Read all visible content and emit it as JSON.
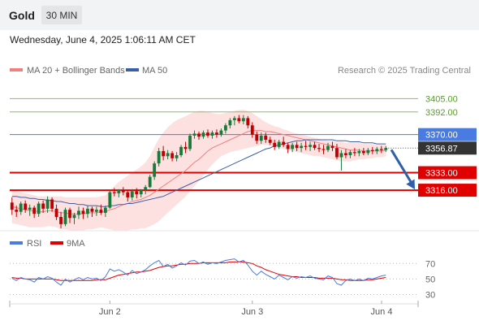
{
  "header": {
    "asset": "Gold",
    "timeframe": "30 MIN",
    "timestamp": "Wednesday, June 4, 2025 1:06:11 AM CET"
  },
  "legend": {
    "ma20_bb": "MA 20 + Bollinger Bands",
    "ma50": "MA 50",
    "credit": "Research © 2025 Trading Central",
    "rsi": "RSI",
    "rsi_ma": "9MA"
  },
  "colors": {
    "up": "#1a7a3a",
    "down": "#c00000",
    "ma20": "#f08080",
    "ma50": "#3a5fa8",
    "band_fill": "#fde0e0",
    "resistance": "#88c060",
    "pivot": "#4a7be0",
    "support": "#e00000",
    "arrow": "#2e5fa8",
    "rsi_line": "#4a7be0",
    "rsi_ma_line": "#e00000"
  },
  "chart_data": [
    {
      "type": "candlestick",
      "title": "Gold",
      "ylim": [
        3275,
        3425
      ],
      "x_ticks": [
        "Jun 2",
        "Jun 3",
        "Jun 4"
      ],
      "levels": [
        {
          "value": 3405.0,
          "label": "3405.00",
          "kind": "resistance"
        },
        {
          "value": 3392.0,
          "label": "3392.00",
          "kind": "resistance"
        },
        {
          "value": 3370.0,
          "label": "3370.00",
          "kind": "pivot"
        },
        {
          "value": 3333.0,
          "label": "3333.00",
          "kind": "support"
        },
        {
          "value": 3316.0,
          "label": "3316.00",
          "kind": "support"
        }
      ],
      "last_price": {
        "value": 3356.87,
        "label": "3356.87"
      },
      "candles": [
        [
          3304,
          3309,
          3292,
          3297
        ],
        [
          3297,
          3301,
          3290,
          3295
        ],
        [
          3295,
          3305,
          3292,
          3303
        ],
        [
          3303,
          3306,
          3294,
          3297
        ],
        [
          3297,
          3302,
          3291,
          3299
        ],
        [
          3299,
          3301,
          3289,
          3293
        ],
        [
          3293,
          3305,
          3290,
          3303
        ],
        [
          3303,
          3306,
          3294,
          3298
        ],
        [
          3298,
          3310,
          3294,
          3307
        ],
        [
          3307,
          3309,
          3295,
          3298
        ],
        [
          3298,
          3302,
          3287,
          3290
        ],
        [
          3290,
          3295,
          3279,
          3283
        ],
        [
          3283,
          3299,
          3281,
          3297
        ],
        [
          3297,
          3299,
          3284,
          3289
        ],
        [
          3289,
          3294,
          3283,
          3292
        ],
        [
          3292,
          3300,
          3288,
          3296
        ],
        [
          3296,
          3299,
          3288,
          3293
        ],
        [
          3293,
          3301,
          3289,
          3298
        ],
        [
          3298,
          3300,
          3290,
          3295
        ],
        [
          3295,
          3300,
          3291,
          3297
        ],
        [
          3297,
          3302,
          3292,
          3294
        ],
        [
          3294,
          3301,
          3290,
          3299
        ],
        [
          3299,
          3316,
          3298,
          3314
        ],
        [
          3314,
          3318,
          3310,
          3313
        ],
        [
          3313,
          3317,
          3309,
          3316
        ],
        [
          3316,
          3319,
          3311,
          3314
        ],
        [
          3314,
          3316,
          3305,
          3309
        ],
        [
          3309,
          3317,
          3306,
          3315
        ],
        [
          3315,
          3318,
          3308,
          3312
        ],
        [
          3312,
          3317,
          3309,
          3316
        ],
        [
          3316,
          3321,
          3312,
          3319
        ],
        [
          3319,
          3331,
          3318,
          3329
        ],
        [
          3329,
          3344,
          3326,
          3342
        ],
        [
          3342,
          3357,
          3339,
          3354
        ],
        [
          3354,
          3359,
          3345,
          3349
        ],
        [
          3349,
          3355,
          3346,
          3352
        ],
        [
          3352,
          3354,
          3344,
          3347
        ],
        [
          3347,
          3353,
          3344,
          3350
        ],
        [
          3350,
          3360,
          3348,
          3358
        ],
        [
          3358,
          3363,
          3352,
          3356
        ],
        [
          3356,
          3371,
          3354,
          3369
        ],
        [
          3369,
          3374,
          3366,
          3371
        ],
        [
          3371,
          3373,
          3365,
          3368
        ],
        [
          3368,
          3374,
          3366,
          3372
        ],
        [
          3372,
          3375,
          3367,
          3369
        ],
        [
          3369,
          3374,
          3366,
          3372
        ],
        [
          3372,
          3375,
          3367,
          3370
        ],
        [
          3370,
          3376,
          3368,
          3374
        ],
        [
          3374,
          3381,
          3371,
          3379
        ],
        [
          3379,
          3386,
          3376,
          3384
        ],
        [
          3384,
          3388,
          3379,
          3386
        ],
        [
          3386,
          3389,
          3381,
          3383
        ],
        [
          3383,
          3389,
          3380,
          3386
        ],
        [
          3386,
          3388,
          3376,
          3379
        ],
        [
          3379,
          3382,
          3367,
          3370
        ],
        [
          3370,
          3373,
          3361,
          3364
        ],
        [
          3364,
          3372,
          3361,
          3369
        ],
        [
          3369,
          3372,
          3362,
          3365
        ],
        [
          3365,
          3368,
          3360,
          3362
        ],
        [
          3362,
          3365,
          3355,
          3358
        ],
        [
          3358,
          3365,
          3356,
          3363
        ],
        [
          3363,
          3368,
          3358,
          3360
        ],
        [
          3360,
          3362,
          3352,
          3356
        ],
        [
          3356,
          3362,
          3353,
          3360
        ],
        [
          3360,
          3363,
          3354,
          3357
        ],
        [
          3357,
          3362,
          3353,
          3359
        ],
        [
          3359,
          3364,
          3355,
          3358
        ],
        [
          3358,
          3363,
          3354,
          3360
        ],
        [
          3360,
          3363,
          3355,
          3357
        ],
        [
          3357,
          3361,
          3353,
          3356
        ],
        [
          3356,
          3360,
          3351,
          3355
        ],
        [
          3355,
          3362,
          3353,
          3359
        ],
        [
          3359,
          3363,
          3354,
          3357
        ],
        [
          3357,
          3361,
          3346,
          3348
        ],
        [
          3348,
          3355,
          3335,
          3352
        ],
        [
          3352,
          3356,
          3347,
          3350
        ],
        [
          3350,
          3355,
          3347,
          3353
        ],
        [
          3353,
          3357,
          3349,
          3352
        ],
        [
          3352,
          3356,
          3349,
          3354
        ],
        [
          3354,
          3357,
          3350,
          3352
        ],
        [
          3352,
          3357,
          3350,
          3355
        ],
        [
          3355,
          3358,
          3351,
          3354
        ],
        [
          3354,
          3358,
          3351,
          3356
        ],
        [
          3356,
          3359,
          3352,
          3355
        ],
        [
          3355,
          3359,
          3353,
          3357
        ]
      ],
      "ma20": [
        3300,
        3299,
        3298,
        3297,
        3296,
        3296,
        3295,
        3295,
        3296,
        3296,
        3295,
        3294,
        3294,
        3293,
        3293,
        3293,
        3293,
        3294,
        3294,
        3294,
        3295,
        3295,
        3297,
        3298,
        3300,
        3302,
        3303,
        3305,
        3306,
        3307,
        3309,
        3311,
        3314,
        3317,
        3320,
        3323,
        3326,
        3329,
        3332,
        3335,
        3339,
        3343,
        3346,
        3350,
        3354,
        3357,
        3359,
        3361,
        3363,
        3365,
        3367,
        3369,
        3371,
        3373,
        3374,
        3374,
        3374,
        3373,
        3373,
        3372,
        3371,
        3370,
        3369,
        3368,
        3367,
        3366,
        3365,
        3364,
        3363,
        3362,
        3361,
        3360,
        3359,
        3358,
        3357,
        3356,
        3355,
        3355,
        3355,
        3354,
        3354,
        3354,
        3354,
        3354,
        3355
      ],
      "bb_upper": [
        3316,
        3315,
        3314,
        3313,
        3312,
        3311,
        3310,
        3310,
        3310,
        3310,
        3310,
        3310,
        3309,
        3309,
        3309,
        3309,
        3309,
        3309,
        3309,
        3309,
        3310,
        3311,
        3316,
        3320,
        3324,
        3327,
        3330,
        3333,
        3336,
        3339,
        3343,
        3349,
        3358,
        3366,
        3372,
        3377,
        3381,
        3384,
        3386,
        3388,
        3390,
        3392,
        3393,
        3393,
        3392,
        3391,
        3390,
        3390,
        3391,
        3392,
        3393,
        3394,
        3394,
        3393,
        3391,
        3388,
        3385,
        3382,
        3380,
        3378,
        3377,
        3375,
        3374,
        3372,
        3371,
        3370,
        3369,
        3368,
        3367,
        3366,
        3365,
        3364,
        3364,
        3363,
        3363,
        3362,
        3362,
        3362,
        3362,
        3361,
        3361,
        3361,
        3360,
        3360,
        3360
      ],
      "bb_lower": [
        3284,
        3283,
        3282,
        3281,
        3280,
        3280,
        3280,
        3280,
        3281,
        3281,
        3280,
        3278,
        3278,
        3277,
        3277,
        3277,
        3277,
        3278,
        3278,
        3279,
        3280,
        3279,
        3278,
        3277,
        3276,
        3277,
        3277,
        3278,
        3278,
        3279,
        3279,
        3281,
        3283,
        3286,
        3290,
        3294,
        3298,
        3302,
        3306,
        3310,
        3315,
        3320,
        3325,
        3330,
        3336,
        3341,
        3345,
        3349,
        3351,
        3353,
        3354,
        3355,
        3356,
        3357,
        3358,
        3359,
        3360,
        3360,
        3359,
        3358,
        3357,
        3356,
        3355,
        3354,
        3353,
        3352,
        3351,
        3350,
        3349,
        3349,
        3348,
        3347,
        3346,
        3345,
        3344,
        3344,
        3344,
        3345,
        3346,
        3346,
        3347,
        3347,
        3348,
        3348,
        3349
      ],
      "ma50": [
        3310,
        3310,
        3309,
        3309,
        3308,
        3308,
        3307,
        3307,
        3306,
        3306,
        3305,
        3305,
        3304,
        3303,
        3303,
        3302,
        3302,
        3301,
        3301,
        3301,
        3300,
        3300,
        3301,
        3301,
        3302,
        3302,
        3303,
        3303,
        3304,
        3305,
        3306,
        3307,
        3308,
        3309,
        3310,
        3312,
        3314,
        3316,
        3318,
        3320,
        3322,
        3324,
        3326,
        3328,
        3330,
        3332,
        3334,
        3336,
        3338,
        3340,
        3342,
        3344,
        3346,
        3348,
        3350,
        3352,
        3354,
        3356,
        3357,
        3359,
        3360,
        3361,
        3362,
        3363,
        3364,
        3364,
        3365,
        3365,
        3365,
        3365,
        3365,
        3365,
        3365,
        3364,
        3364,
        3364,
        3363,
        3363,
        3363,
        3362,
        3362,
        3362,
        3361,
        3361,
        3361
      ],
      "forecast": {
        "from": 3356.87,
        "to": 3316
      }
    },
    {
      "type": "line",
      "title": "RSI",
      "y_ticks": [
        70,
        50,
        30
      ],
      "ylim": [
        20,
        85
      ],
      "series": [
        {
          "name": "RSI",
          "values": [
            51,
            48,
            52,
            50,
            49,
            46,
            52,
            50,
            53,
            51,
            46,
            42,
            50,
            46,
            49,
            52,
            49,
            52,
            50,
            51,
            48,
            53,
            63,
            60,
            62,
            59,
            55,
            61,
            57,
            59,
            62,
            67,
            71,
            74,
            66,
            69,
            64,
            67,
            71,
            68,
            73,
            74,
            70,
            72,
            69,
            71,
            70,
            72,
            74,
            75,
            76,
            72,
            74,
            68,
            60,
            55,
            60,
            56,
            53,
            50,
            55,
            52,
            49,
            53,
            51,
            53,
            52,
            54,
            51,
            50,
            49,
            54,
            52,
            44,
            42,
            48,
            50,
            48,
            50,
            48,
            51,
            50,
            52,
            54,
            55
          ]
        },
        {
          "name": "9MA",
          "values": [
            52,
            51,
            51,
            50,
            50,
            50,
            50,
            50,
            50,
            50,
            49,
            48,
            48,
            48,
            48,
            48,
            48,
            48,
            48,
            49,
            49,
            49,
            51,
            53,
            55,
            56,
            57,
            58,
            59,
            59,
            60,
            61,
            63,
            65,
            66,
            67,
            67,
            68,
            69,
            69,
            70,
            70,
            70,
            71,
            71,
            71,
            71,
            71,
            71,
            72,
            72,
            72,
            72,
            71,
            70,
            67,
            65,
            62,
            60,
            58,
            56,
            55,
            54,
            53,
            53,
            52,
            52,
            52,
            52,
            51,
            51,
            51,
            51,
            50,
            49,
            49,
            48,
            48,
            48,
            48,
            49,
            49,
            50,
            51,
            52
          ]
        }
      ]
    }
  ]
}
